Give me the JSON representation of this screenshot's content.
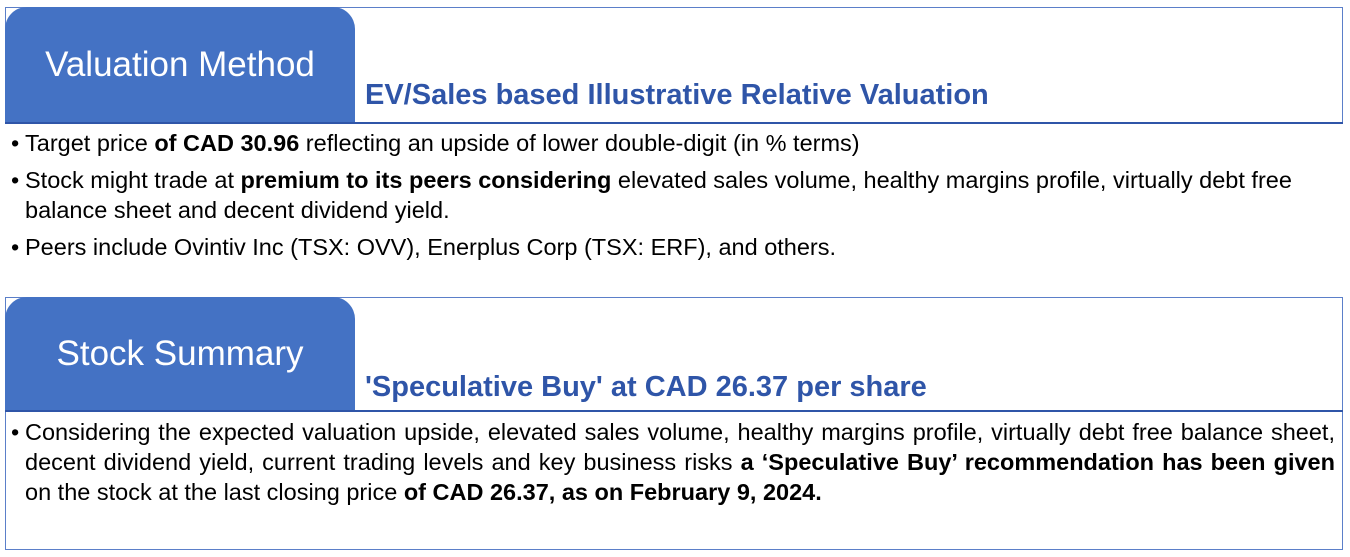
{
  "valuation": {
    "tab_label": "Valuation Method",
    "heading": "EV/Sales based Illustrative Relative Valuation",
    "bullets": [
      {
        "parts": [
          {
            "text": "Target price ",
            "bold": false
          },
          {
            "text": "of CAD 30.96",
            "bold": true
          },
          {
            "text": " reflecting an upside of lower double-digit (in % terms)",
            "bold": false
          }
        ]
      },
      {
        "parts": [
          {
            "text": "Stock might trade at ",
            "bold": false
          },
          {
            "text": "premium to its peers considering",
            "bold": true
          },
          {
            "text": " elevated sales volume, healthy margins profile, virtually debt free balance sheet and decent dividend yield.",
            "bold": false
          }
        ]
      },
      {
        "parts": [
          {
            "text": "Peers include Ovintiv Inc (TSX: OVV), Enerplus Corp (TSX: ERF), and others.",
            "bold": false
          }
        ]
      }
    ]
  },
  "summary": {
    "tab_label": "Stock Summary",
    "heading": "'Speculative Buy' at CAD 26.37 per share",
    "bullets": [
      {
        "parts": [
          {
            "text": "Considering the expected valuation upside, elevated sales volume, healthy margins profile, virtually debt free balance sheet, decent dividend yield, current trading levels and key business risks ",
            "bold": false
          },
          {
            "text": "a ‘Speculative Buy’ recommendation has been given",
            "bold": true
          },
          {
            "text": " on the stock at the last closing price ",
            "bold": false
          },
          {
            "text": "of CAD 26.37, as on February 9, 2024.",
            "bold": true
          }
        ]
      }
    ]
  },
  "colors": {
    "tab_background": "#4472c4",
    "heading_text": "#2f55a8",
    "frame_border": "#5b7fc9"
  }
}
